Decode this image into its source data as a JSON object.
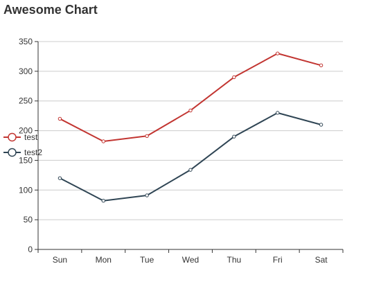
{
  "chart_data": {
    "type": "line",
    "title": "Awesome Chart",
    "categories": [
      "Sun",
      "Mon",
      "Tue",
      "Wed",
      "Thu",
      "Fri",
      "Sat"
    ],
    "ylim": [
      0,
      350
    ],
    "yticks": [
      0,
      50,
      100,
      150,
      200,
      250,
      300,
      350
    ],
    "grid": true,
    "legend_position": "left",
    "series": [
      {
        "name": "test",
        "color": "#c23531",
        "values": [
          220,
          182,
          191,
          234,
          290,
          330,
          310
        ]
      },
      {
        "name": "test2",
        "color": "#2f4554",
        "values": [
          120,
          82,
          91,
          134,
          190,
          230,
          210
        ]
      }
    ]
  }
}
